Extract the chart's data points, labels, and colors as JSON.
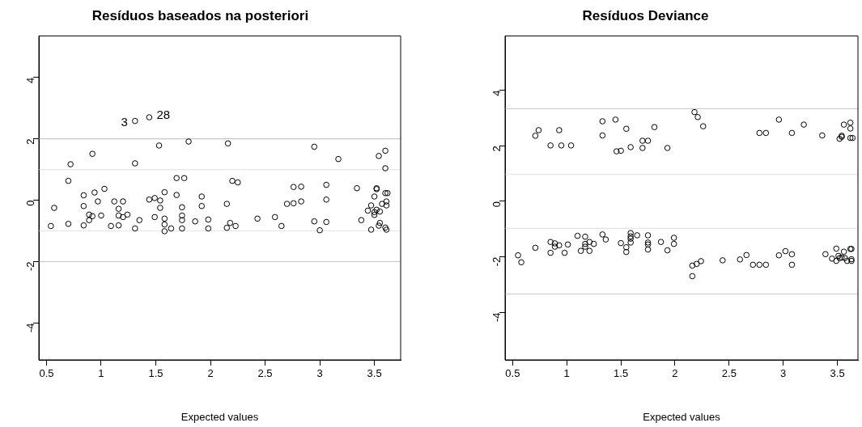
{
  "chart_data": [
    {
      "type": "scatter",
      "title": "Resíduos baseados na posteriori",
      "xlabel": "Expected values",
      "xlim": [
        0.43,
        3.74
      ],
      "ylim": [
        -5.2,
        5.35
      ],
      "xticks": [
        0.5,
        1.0,
        1.5,
        2.0,
        2.5,
        3.0,
        3.5
      ],
      "yticks": [
        -4,
        -2,
        0,
        2,
        4
      ],
      "grid": false,
      "legend": false,
      "marker": "circle",
      "ref_lines": [
        {
          "axis": "y",
          "value": 2,
          "color": "#c8c8c8"
        },
        {
          "axis": "y",
          "value": 1,
          "color": "#e6e6e6"
        },
        {
          "axis": "y",
          "value": -1,
          "color": "#e6e6e6"
        },
        {
          "axis": "y",
          "value": -2,
          "color": "#c8c8c8"
        }
      ],
      "annotations": [
        {
          "text": "3",
          "x": 1.31,
          "y": 2.58
        },
        {
          "text": "28",
          "x": 1.44,
          "y": 2.7
        }
      ],
      "series": [
        {
          "color": "#000000",
          "x": [
            1.31,
            1.44,
            1.53,
            1.8,
            0.92,
            0.72,
            1.31,
            0.7,
            1.69,
            1.76,
            1.03,
            0.94,
            0.84,
            0.97,
            1.12,
            1.2,
            1.44,
            1.49,
            1.54,
            1.58,
            1.69,
            1.92,
            1.92,
            0.57,
            0.84,
            1.16,
            1.54,
            1.74,
            0.89,
            0.92,
            1.0,
            1.16,
            1.2,
            1.24,
            1.49,
            1.74,
            0.89,
            1.35,
            1.58,
            1.74,
            1.86,
            1.98,
            0.54,
            0.7,
            0.84,
            1.09,
            1.16,
            1.31,
            1.58,
            1.64,
            1.58,
            1.74,
            1.98,
            2.16,
            2.95,
            3.17,
            3.54,
            3.6,
            3.6,
            2.2,
            2.25,
            2.76,
            2.83,
            3.06,
            3.34,
            3.52,
            3.52,
            3.5,
            3.6,
            3.62,
            2.15,
            2.7,
            2.76,
            2.83,
            3.06,
            3.47,
            3.57,
            3.61,
            3.61,
            3.44,
            3.5,
            3.5,
            3.52,
            3.55,
            2.43,
            2.59,
            2.15,
            2.18,
            2.23,
            2.65,
            2.95,
            3.06,
            3.0,
            3.38,
            3.47,
            3.55,
            3.54,
            3.6,
            3.61
          ],
          "values": [
            2.58,
            2.7,
            1.78,
            1.91,
            1.51,
            1.17,
            1.2,
            0.63,
            0.72,
            0.72,
            0.37,
            0.25,
            0.16,
            -0.04,
            -0.04,
            -0.04,
            0.02,
            0.07,
            -0.01,
            0.26,
            0.17,
            0.12,
            -0.19,
            -0.25,
            -0.19,
            -0.28,
            -0.25,
            -0.23,
            -0.47,
            -0.52,
            -0.5,
            -0.5,
            -0.55,
            -0.47,
            -0.55,
            -0.5,
            -0.65,
            -0.65,
            -0.6,
            -0.65,
            -0.69,
            -0.63,
            -0.84,
            -0.77,
            -0.82,
            -0.84,
            -0.82,
            -0.92,
            -0.79,
            -0.92,
            -1.01,
            -0.92,
            -0.92,
            1.85,
            1.74,
            1.34,
            1.44,
            1.61,
            1.04,
            0.63,
            0.58,
            0.43,
            0.44,
            0.5,
            0.39,
            0.39,
            0.36,
            0.12,
            0.23,
            0.23,
            -0.12,
            -0.12,
            -0.1,
            -0.04,
            0.02,
            -0.17,
            -0.12,
            -0.04,
            -0.17,
            -0.34,
            -0.39,
            -0.48,
            -0.31,
            -0.37,
            -0.6,
            -0.55,
            -0.9,
            -0.74,
            -0.84,
            -0.84,
            -0.69,
            -0.71,
            -0.98,
            -0.65,
            -0.96,
            -0.74,
            -0.83,
            -0.89,
            -0.96
          ]
        }
      ]
    },
    {
      "type": "scatter",
      "title": "Resíduos Deviance",
      "xlabel": "Expected values",
      "xlim": [
        0.43,
        3.69
      ],
      "ylim": [
        -5.7,
        5.95
      ],
      "xticks": [
        0.5,
        1.0,
        1.5,
        2.0,
        2.5,
        3.0,
        3.5
      ],
      "yticks": [
        -4,
        -2,
        0,
        2,
        4
      ],
      "grid": false,
      "legend": false,
      "marker": "circle",
      "ref_lines": [
        {
          "axis": "y",
          "value": 3.33,
          "color": "#c8c8c8"
        },
        {
          "axis": "y",
          "value": 0.97,
          "color": "#e6e6e6"
        },
        {
          "axis": "y",
          "value": -0.97,
          "color": "#e6e6e6"
        },
        {
          "axis": "y",
          "value": -3.33,
          "color": "#c8c8c8"
        }
      ],
      "series": [
        {
          "color": "#000000",
          "x": [
            0.71,
            0.74,
            0.93,
            0.85,
            0.95,
            1.04,
            1.33,
            1.33,
            1.45,
            1.55,
            1.46,
            1.5,
            1.59,
            1.7,
            1.75,
            1.7,
            1.81,
            1.93,
            2.18,
            2.21,
            2.26,
            2.78,
            2.84,
            2.96,
            3.08,
            3.19,
            3.36,
            3.52,
            3.54,
            3.54,
            3.56,
            3.62,
            3.62,
            3.62,
            3.64,
            0.55,
            0.58,
            0.71,
            0.85,
            0.85,
            0.89,
            0.89,
            0.93,
            0.98,
            1.01,
            1.1,
            1.17,
            1.17,
            1.17,
            1.21,
            1.25,
            1.13,
            1.21,
            1.33,
            1.36,
            1.5,
            1.55,
            1.55,
            1.59,
            1.59,
            1.59,
            1.59,
            1.65,
            1.75,
            1.75,
            1.75,
            1.75,
            1.87,
            1.93,
            1.99,
            1.99,
            2.16,
            2.2,
            2.24,
            2.16,
            2.44,
            2.6,
            2.66,
            2.72,
            2.78,
            2.84,
            2.96,
            3.02,
            3.08,
            3.08,
            3.39,
            3.45,
            3.49,
            3.49,
            3.51,
            3.52,
            3.54,
            3.56,
            3.57,
            3.59,
            3.62,
            3.63,
            3.63,
            3.63
          ],
          "values": [
            2.36,
            2.56,
            2.56,
            2.01,
            2.01,
            2.01,
            2.88,
            2.37,
            2.94,
            2.61,
            1.8,
            1.82,
            1.95,
            2.18,
            2.18,
            1.92,
            2.67,
            1.92,
            3.21,
            3.03,
            2.7,
            2.46,
            2.46,
            2.94,
            2.46,
            2.76,
            2.37,
            2.25,
            2.36,
            2.32,
            2.76,
            2.83,
            2.62,
            2.28,
            2.28,
            -1.94,
            -2.19,
            -1.67,
            -1.46,
            -1.85,
            -1.51,
            -1.63,
            -1.58,
            -1.85,
            -1.55,
            -1.24,
            -1.27,
            -1.53,
            -1.63,
            -1.46,
            -1.53,
            -1.78,
            -1.78,
            -1.19,
            -1.37,
            -1.5,
            -1.65,
            -1.82,
            -1.14,
            -1.26,
            -1.34,
            -1.48,
            -1.22,
            -1.22,
            -1.48,
            -1.55,
            -1.73,
            -1.46,
            -1.76,
            -1.31,
            -1.53,
            -2.31,
            -2.25,
            -2.15,
            -2.69,
            -2.12,
            -2.09,
            -1.93,
            -2.28,
            -2.28,
            -2.28,
            -1.94,
            -1.79,
            -1.9,
            -2.28,
            -1.9,
            -2.06,
            -1.7,
            -2.14,
            -1.96,
            -2.04,
            -2.02,
            -1.81,
            -2.04,
            -2.14,
            -1.71,
            -1.71,
            -2.08,
            -2.14
          ]
        }
      ]
    }
  ]
}
